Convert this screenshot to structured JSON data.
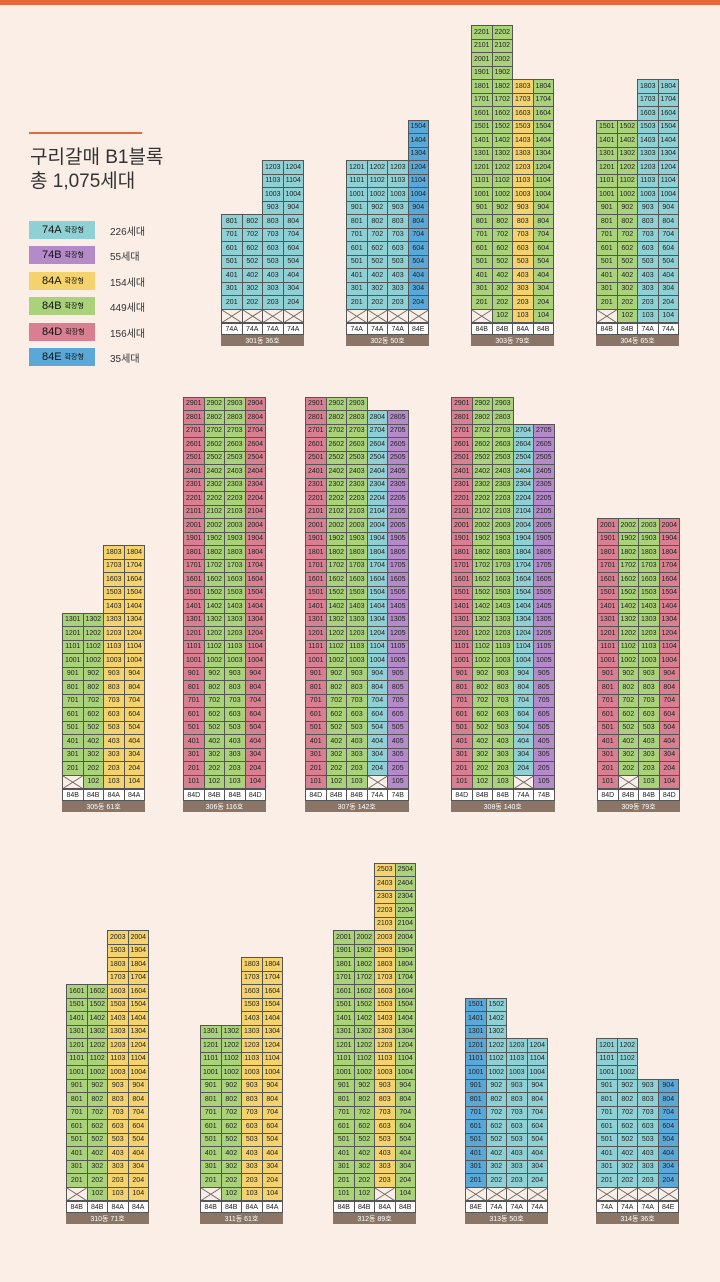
{
  "title": {
    "line1": "구리갈매 B1블록",
    "line2": "총 1,075세대"
  },
  "types": {
    "74A": {
      "label": "74A",
      "suffix": "확장형",
      "count": "226세대",
      "color": "#8fd0d4"
    },
    "74B": {
      "label": "74B",
      "suffix": "확장형",
      "count": "55세대",
      "color": "#b48ac8"
    },
    "84A": {
      "label": "84A",
      "suffix": "확장형",
      "count": "154세대",
      "color": "#f4d26e"
    },
    "84B": {
      "label": "84B",
      "suffix": "확장형",
      "count": "449세대",
      "color": "#a9d27a"
    },
    "84D": {
      "label": "84D",
      "suffix": "확장형",
      "count": "156세대",
      "color": "#d97f92"
    },
    "84E": {
      "label": "84E",
      "suffix": "확장형",
      "count": "35세대",
      "color": "#5aa8d8"
    }
  },
  "legend": [
    "74A",
    "74B",
    "84A",
    "84B",
    "84D",
    "84E"
  ],
  "buildings": [
    {
      "label": "301동 36호",
      "types": [
        "74A",
        "74A",
        "74A",
        "74A"
      ],
      "heights": [
        8,
        8,
        12,
        12
      ],
      "first_floor": [
        0,
        0,
        0,
        0
      ]
    },
    {
      "label": "302동 50호",
      "types": [
        "74A",
        "74A",
        "74A",
        "84E"
      ],
      "heights": [
        12,
        12,
        12,
        15
      ],
      "first_floor": [
        0,
        0,
        0,
        0
      ]
    },
    {
      "label": "303동 79호",
      "types": [
        "84B",
        "84B",
        "84A",
        "84B"
      ],
      "heights": [
        22,
        22,
        18,
        18
      ],
      "first_floor": [
        0,
        1,
        1,
        1
      ]
    },
    {
      "label": "304동 65호",
      "types": [
        "84B",
        "84B",
        "74A",
        "74A"
      ],
      "heights": [
        15,
        15,
        18,
        18
      ],
      "first_floor": [
        0,
        1,
        1,
        1
      ]
    },
    {
      "label": "305동 61호",
      "types": [
        "84B",
        "84B",
        "84A",
        "84A"
      ],
      "heights": [
        13,
        13,
        18,
        18
      ],
      "first_floor": [
        0,
        1,
        1,
        1
      ]
    },
    {
      "label": "306동 116호",
      "types": [
        "84D",
        "84B",
        "84B",
        "84D"
      ],
      "heights": [
        29,
        29,
        29,
        29
      ],
      "first_floor": [
        1,
        1,
        1,
        1
      ]
    },
    {
      "label": "307동 142호",
      "types": [
        "84D",
        "84B",
        "84B",
        "74A",
        "74B"
      ],
      "heights": [
        29,
        29,
        29,
        28,
        28
      ],
      "first_floor": [
        1,
        1,
        1,
        0,
        1
      ]
    },
    {
      "label": "308동 140호",
      "types": [
        "84D",
        "84B",
        "84B",
        "74A",
        "74B"
      ],
      "heights": [
        29,
        29,
        29,
        27,
        27
      ],
      "first_floor": [
        1,
        1,
        1,
        0,
        1
      ]
    },
    {
      "label": "309동 79호",
      "types": [
        "84D",
        "84B",
        "84B",
        "84D"
      ],
      "heights": [
        20,
        20,
        20,
        20
      ],
      "first_floor": [
        1,
        0,
        1,
        1
      ]
    },
    {
      "label": "310동 71호",
      "types": [
        "84B",
        "84B",
        "84A",
        "84A"
      ],
      "heights": [
        16,
        16,
        20,
        20
      ],
      "first_floor": [
        0,
        1,
        1,
        1
      ]
    },
    {
      "label": "311동 61호",
      "types": [
        "84B",
        "84B",
        "84A",
        "84A"
      ],
      "heights": [
        13,
        13,
        18,
        18
      ],
      "first_floor": [
        0,
        1,
        1,
        1
      ]
    },
    {
      "label": "312동 89호",
      "types": [
        "84B",
        "84B",
        "84A",
        "84B"
      ],
      "heights": [
        20,
        20,
        25,
        25
      ],
      "first_floor": [
        1,
        1,
        0,
        1
      ]
    },
    {
      "label": "313동 50호",
      "types": [
        "84E",
        "74A",
        "74A",
        "74A"
      ],
      "heights": [
        15,
        15,
        12,
        12
      ],
      "first_floor": [
        0,
        0,
        0,
        0
      ]
    },
    {
      "label": "314동 36호",
      "types": [
        "74A",
        "74A",
        "74A",
        "84E"
      ],
      "heights": [
        12,
        12,
        9,
        9
      ],
      "first_floor": [
        0,
        0,
        0,
        0
      ]
    }
  ]
}
